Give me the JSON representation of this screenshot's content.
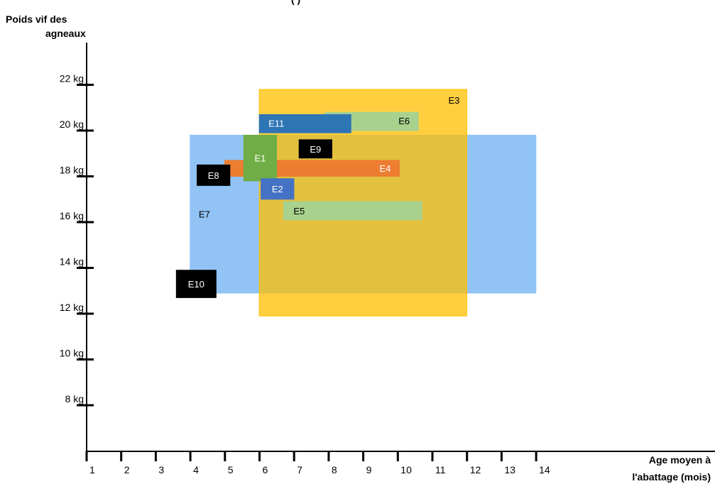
{
  "chart_data": {
    "type": "range-box",
    "title": "(                          )",
    "ylabel_line1": "Poids vif des",
    "ylabel_line2": "agneaux",
    "xlabel_line1": "Age moyen à",
    "xlabel_line2": "l'abattage (mois)",
    "y_ticks": [
      {
        "value": 8,
        "label": "8 kg"
      },
      {
        "value": 10,
        "label": "10 kg"
      },
      {
        "value": 12,
        "label": "12 kg"
      },
      {
        "value": 14,
        "label": "14 kg"
      },
      {
        "value": 16,
        "label": "16 kg"
      },
      {
        "value": 18,
        "label": "18 kg"
      },
      {
        "value": 20,
        "label": "20 kg"
      },
      {
        "value": 22,
        "label": "22 kg"
      }
    ],
    "x_ticks": [
      {
        "value": 1,
        "label": "1"
      },
      {
        "value": 2,
        "label": "2"
      },
      {
        "value": 3,
        "label": "3"
      },
      {
        "value": 4,
        "label": "4"
      },
      {
        "value": 5,
        "label": "5"
      },
      {
        "value": 6,
        "label": "6"
      },
      {
        "value": 7,
        "label": "7"
      },
      {
        "value": 8,
        "label": "8"
      },
      {
        "value": 9,
        "label": "9"
      },
      {
        "value": 10,
        "label": "10"
      },
      {
        "value": 11,
        "label": "11"
      },
      {
        "value": 12,
        "label": "12"
      },
      {
        "value": 13,
        "label": "13"
      },
      {
        "value": 14,
        "label": "14"
      }
    ],
    "series": [
      {
        "name": "E7",
        "x": [
          4.0,
          14.0
        ],
        "y": [
          12.9,
          19.8
        ],
        "color": "#91c3f5",
        "text_color": "#000000",
        "opacity": 1
      },
      {
        "name": "E3",
        "x": [
          6.0,
          12.0
        ],
        "y": [
          11.9,
          21.8
        ],
        "color": "#ffbf00",
        "text_color": "#000000",
        "opacity": 0.75
      },
      {
        "name": "E6",
        "x": [
          7.9,
          10.6
        ],
        "y": [
          20.0,
          20.8
        ],
        "color": "#a9d18e",
        "text_color": "#000000",
        "opacity": 1
      },
      {
        "name": "E11",
        "x": [
          6.0,
          8.65
        ],
        "y": [
          19.9,
          20.7
        ],
        "color": "#2e75b6",
        "text_color": "#ffffff",
        "opacity": 1
      },
      {
        "name": "E4",
        "x": [
          5.0,
          10.05
        ],
        "y": [
          18.0,
          18.7
        ],
        "color": "#ed7d31",
        "text_color": "#ffffff",
        "opacity": 1
      },
      {
        "name": "E1",
        "x": [
          5.55,
          6.5
        ],
        "y": [
          17.8,
          19.8
        ],
        "color": "#70ad47",
        "text_color": "#ffffff",
        "opacity": 1
      },
      {
        "name": "E2",
        "x": [
          6.05,
          7.0
        ],
        "y": [
          17.0,
          17.9
        ],
        "color": "#4472c4",
        "text_color": "#ffffff",
        "opacity": 1
      },
      {
        "name": "E5",
        "x": [
          6.7,
          10.7
        ],
        "y": [
          16.1,
          16.9
        ],
        "color": "#a9d18e",
        "text_color": "#000000",
        "opacity": 1
      },
      {
        "name": "E9",
        "x": [
          7.15,
          8.1
        ],
        "y": [
          18.8,
          19.6
        ],
        "color": "#000000",
        "text_color": "#ffffff",
        "opacity": 1
      },
      {
        "name": "E8",
        "x": [
          4.2,
          5.15
        ],
        "y": [
          17.6,
          18.5
        ],
        "color": "#000000",
        "text_color": "#ffffff",
        "opacity": 1
      },
      {
        "name": "E10",
        "x": [
          3.6,
          4.75
        ],
        "y": [
          12.7,
          13.9
        ],
        "color": "#000000",
        "text_color": "#ffffff",
        "opacity": 1
      }
    ]
  }
}
